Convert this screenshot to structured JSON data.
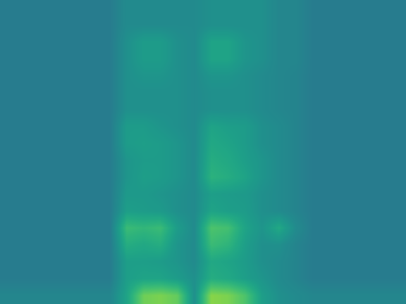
{
  "chart_data": {
    "type": "heatmap",
    "tick_labels": false,
    "zlim": [
      0,
      100
    ],
    "cells": [
      [
        42,
        42,
        42,
        42,
        42,
        42,
        42,
        48,
        48,
        48,
        48,
        48,
        50,
        50,
        50,
        50,
        46,
        46,
        42,
        42,
        42,
        42,
        42,
        42
      ],
      [
        42,
        42,
        42,
        42,
        42,
        42,
        42,
        48,
        48,
        48,
        48,
        48,
        50,
        50,
        50,
        50,
        46,
        46,
        42,
        42,
        42,
        42,
        42,
        42
      ],
      [
        42,
        42,
        42,
        42,
        42,
        42,
        42,
        50,
        55,
        55,
        50,
        48,
        58,
        58,
        52,
        50,
        46,
        46,
        42,
        42,
        42,
        42,
        42,
        42
      ],
      [
        42,
        42,
        42,
        42,
        42,
        42,
        42,
        50,
        55,
        55,
        50,
        48,
        58,
        58,
        52,
        50,
        46,
        46,
        42,
        42,
        42,
        42,
        42,
        42
      ],
      [
        42,
        42,
        42,
        42,
        42,
        42,
        42,
        50,
        52,
        52,
        50,
        48,
        52,
        52,
        50,
        48,
        46,
        45,
        42,
        42,
        42,
        42,
        42,
        42
      ],
      [
        42,
        42,
        42,
        42,
        42,
        42,
        42,
        50,
        50,
        50,
        50,
        48,
        50,
        50,
        50,
        48,
        46,
        45,
        42,
        42,
        42,
        42,
        42,
        42
      ],
      [
        42,
        42,
        42,
        42,
        42,
        42,
        42,
        50,
        50,
        50,
        50,
        48,
        50,
        50,
        50,
        48,
        46,
        45,
        42,
        42,
        42,
        42,
        42,
        42
      ],
      [
        42,
        42,
        42,
        42,
        42,
        42,
        42,
        55,
        55,
        52,
        50,
        48,
        58,
        56,
        55,
        50,
        48,
        45,
        42,
        42,
        42,
        42,
        42,
        42
      ],
      [
        42,
        42,
        42,
        42,
        42,
        42,
        42,
        55,
        56,
        55,
        52,
        48,
        60,
        58,
        55,
        50,
        48,
        45,
        42,
        42,
        42,
        42,
        42,
        42
      ],
      [
        42,
        42,
        42,
        42,
        42,
        42,
        42,
        52,
        55,
        55,
        52,
        48,
        62,
        60,
        56,
        52,
        48,
        45,
        42,
        42,
        42,
        42,
        42,
        42
      ],
      [
        42,
        42,
        42,
        42,
        42,
        42,
        42,
        52,
        56,
        55,
        52,
        48,
        64,
        62,
        58,
        52,
        48,
        45,
        42,
        42,
        42,
        42,
        42,
        42
      ],
      [
        42,
        42,
        42,
        42,
        42,
        42,
        42,
        54,
        54,
        52,
        50,
        48,
        56,
        55,
        54,
        50,
        48,
        45,
        42,
        42,
        42,
        42,
        42,
        42
      ],
      [
        42,
        42,
        42,
        42,
        42,
        42,
        42,
        56,
        55,
        54,
        50,
        48,
        58,
        56,
        55,
        50,
        48,
        45,
        42,
        42,
        42,
        42,
        42,
        42
      ],
      [
        42,
        42,
        42,
        42,
        42,
        42,
        42,
        68,
        66,
        68,
        55,
        48,
        72,
        70,
        58,
        52,
        60,
        48,
        42,
        42,
        42,
        42,
        42,
        42
      ],
      [
        42,
        42,
        42,
        42,
        42,
        42,
        42,
        62,
        60,
        62,
        52,
        48,
        68,
        65,
        56,
        50,
        50,
        45,
        42,
        42,
        42,
        42,
        42,
        42
      ],
      [
        42,
        42,
        42,
        42,
        42,
        42,
        42,
        56,
        56,
        55,
        52,
        48,
        60,
        58,
        55,
        50,
        48,
        45,
        42,
        42,
        42,
        42,
        42,
        42
      ],
      [
        42,
        42,
        42,
        42,
        42,
        42,
        42,
        56,
        58,
        58,
        55,
        50,
        62,
        60,
        56,
        52,
        48,
        45,
        42,
        42,
        42,
        42,
        42,
        42
      ],
      [
        46,
        46,
        46,
        46,
        46,
        46,
        46,
        58,
        78,
        80,
        76,
        50,
        82,
        80,
        72,
        56,
        50,
        48,
        46,
        46,
        46,
        46,
        46,
        46
      ]
    ]
  }
}
